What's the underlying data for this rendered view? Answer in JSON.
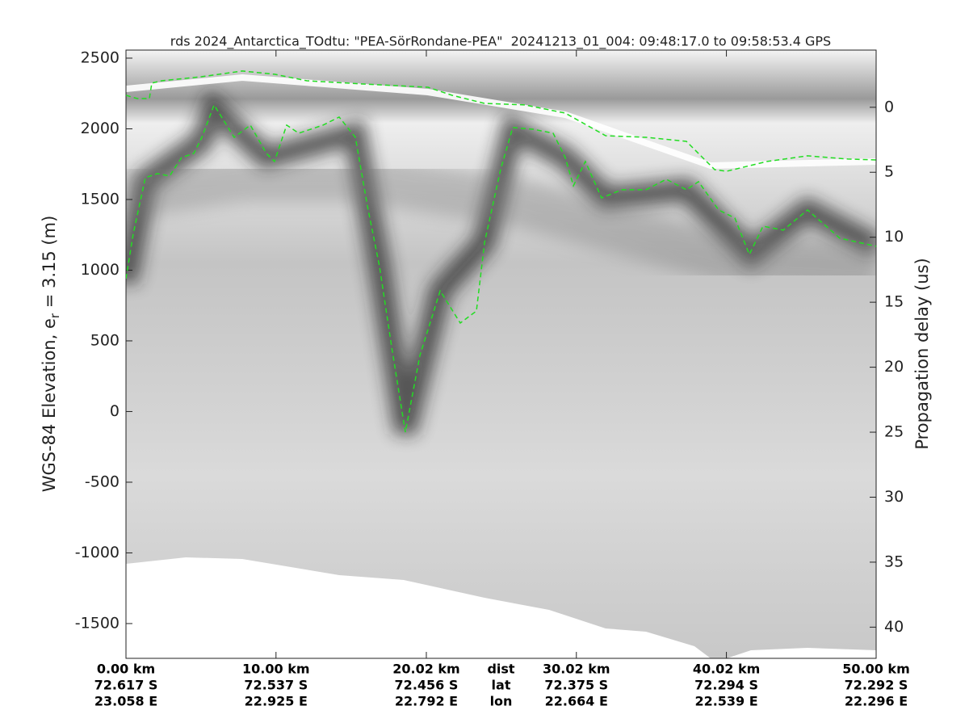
{
  "chart_data": {
    "type": "line",
    "title": "rds 2024_Antarctica_TOdtu: \"PEA-SörRondane-PEA\"  20241213_01_004: 09:48:17.0 to 09:58:53.4 GPS",
    "ylabel": {
      "text": "WGS-84 Elevation, e",
      "sub": "r",
      "rest": " = 3.15 (m)"
    },
    "y2label": "Propagation delay (us)",
    "xlim": [
      0,
      50
    ],
    "xticks": [
      {
        "value": 0,
        "label": "0.00 km",
        "lat": "72.617 S",
        "lon": "23.058 E"
      },
      {
        "value": 10,
        "label": "10.00 km",
        "lat": "72.537 S",
        "lon": "22.925 E"
      },
      {
        "value": 20.02,
        "label": "20.02 km",
        "lat": "72.456 S",
        "lon": "22.792 E"
      },
      {
        "value": 30.02,
        "label": "30.02 km",
        "lat": "72.375 S",
        "lon": "22.664 E"
      },
      {
        "value": 40.02,
        "label": "40.02 km",
        "lat": "72.294 S",
        "lon": "22.539 E"
      },
      {
        "value": 50,
        "label": "50.00 km",
        "lat": "72.292 S",
        "lon": "22.296 E"
      }
    ],
    "row_headers": {
      "value": 25,
      "labels": [
        "dist",
        "lat",
        "lon"
      ]
    },
    "ylim": [
      -1746,
      2557
    ],
    "yticks": [
      2500,
      2000,
      1500,
      1000,
      500,
      0,
      -500,
      -1000,
      -1500
    ],
    "y2lim": [
      -4.4,
      42.4
    ],
    "y2ticks": [
      0,
      5,
      10,
      15,
      20,
      25,
      30,
      35,
      40
    ],
    "series": [
      {
        "name": "surface",
        "color": "#22dd22",
        "x": [
          0,
          0.75,
          1.56,
          1.72,
          2.37,
          5.06,
          7.75,
          9.9,
          12.06,
          15.82,
          20.13,
          21.74,
          23.9,
          26.59,
          29.28,
          31.97,
          34.66,
          37.35,
          39.24,
          40.04,
          42.73,
          45.42,
          48.12,
          50
        ],
        "values": [
          2237,
          2214,
          2214,
          2323,
          2340,
          2369,
          2409,
          2386,
          2340,
          2317,
          2294,
          2237,
          2180,
          2169,
          2111,
          1951,
          1940,
          1911,
          1711,
          1700,
          1769,
          1809,
          1786,
          1780
        ]
      },
      {
        "name": "bed",
        "color": "#22dd22",
        "x": [
          0,
          0.48,
          1.29,
          2.1,
          2.91,
          3.71,
          4.52,
          5.06,
          5.87,
          7.21,
          8.29,
          9.36,
          9.9,
          10.71,
          11.52,
          13.13,
          14.21,
          15.29,
          16.09,
          16.9,
          17.71,
          18.62,
          19.59,
          20.94,
          22.28,
          23.36,
          23.9,
          24.97,
          25.78,
          27.13,
          28.47,
          29.28,
          29.82,
          30.62,
          31.7,
          33.05,
          34.66,
          36.01,
          37.35,
          38.16,
          39.5,
          40.58,
          41.55,
          42.46,
          43.81,
          45.43,
          47.58,
          50
        ],
        "values": [
          940,
          1254,
          1654,
          1683,
          1666,
          1797,
          1826,
          1940,
          2169,
          1940,
          2026,
          1826,
          1769,
          2026,
          1969,
          2026,
          2083,
          1940,
          1454,
          1026,
          454,
          -146,
          397,
          854,
          626,
          711,
          1197,
          1711,
          2009,
          1997,
          1969,
          1797,
          1597,
          1769,
          1511,
          1569,
          1569,
          1643,
          1569,
          1626,
          1426,
          1369,
          1111,
          1311,
          1283,
          1426,
          1226,
          1169
        ]
      }
    ]
  }
}
